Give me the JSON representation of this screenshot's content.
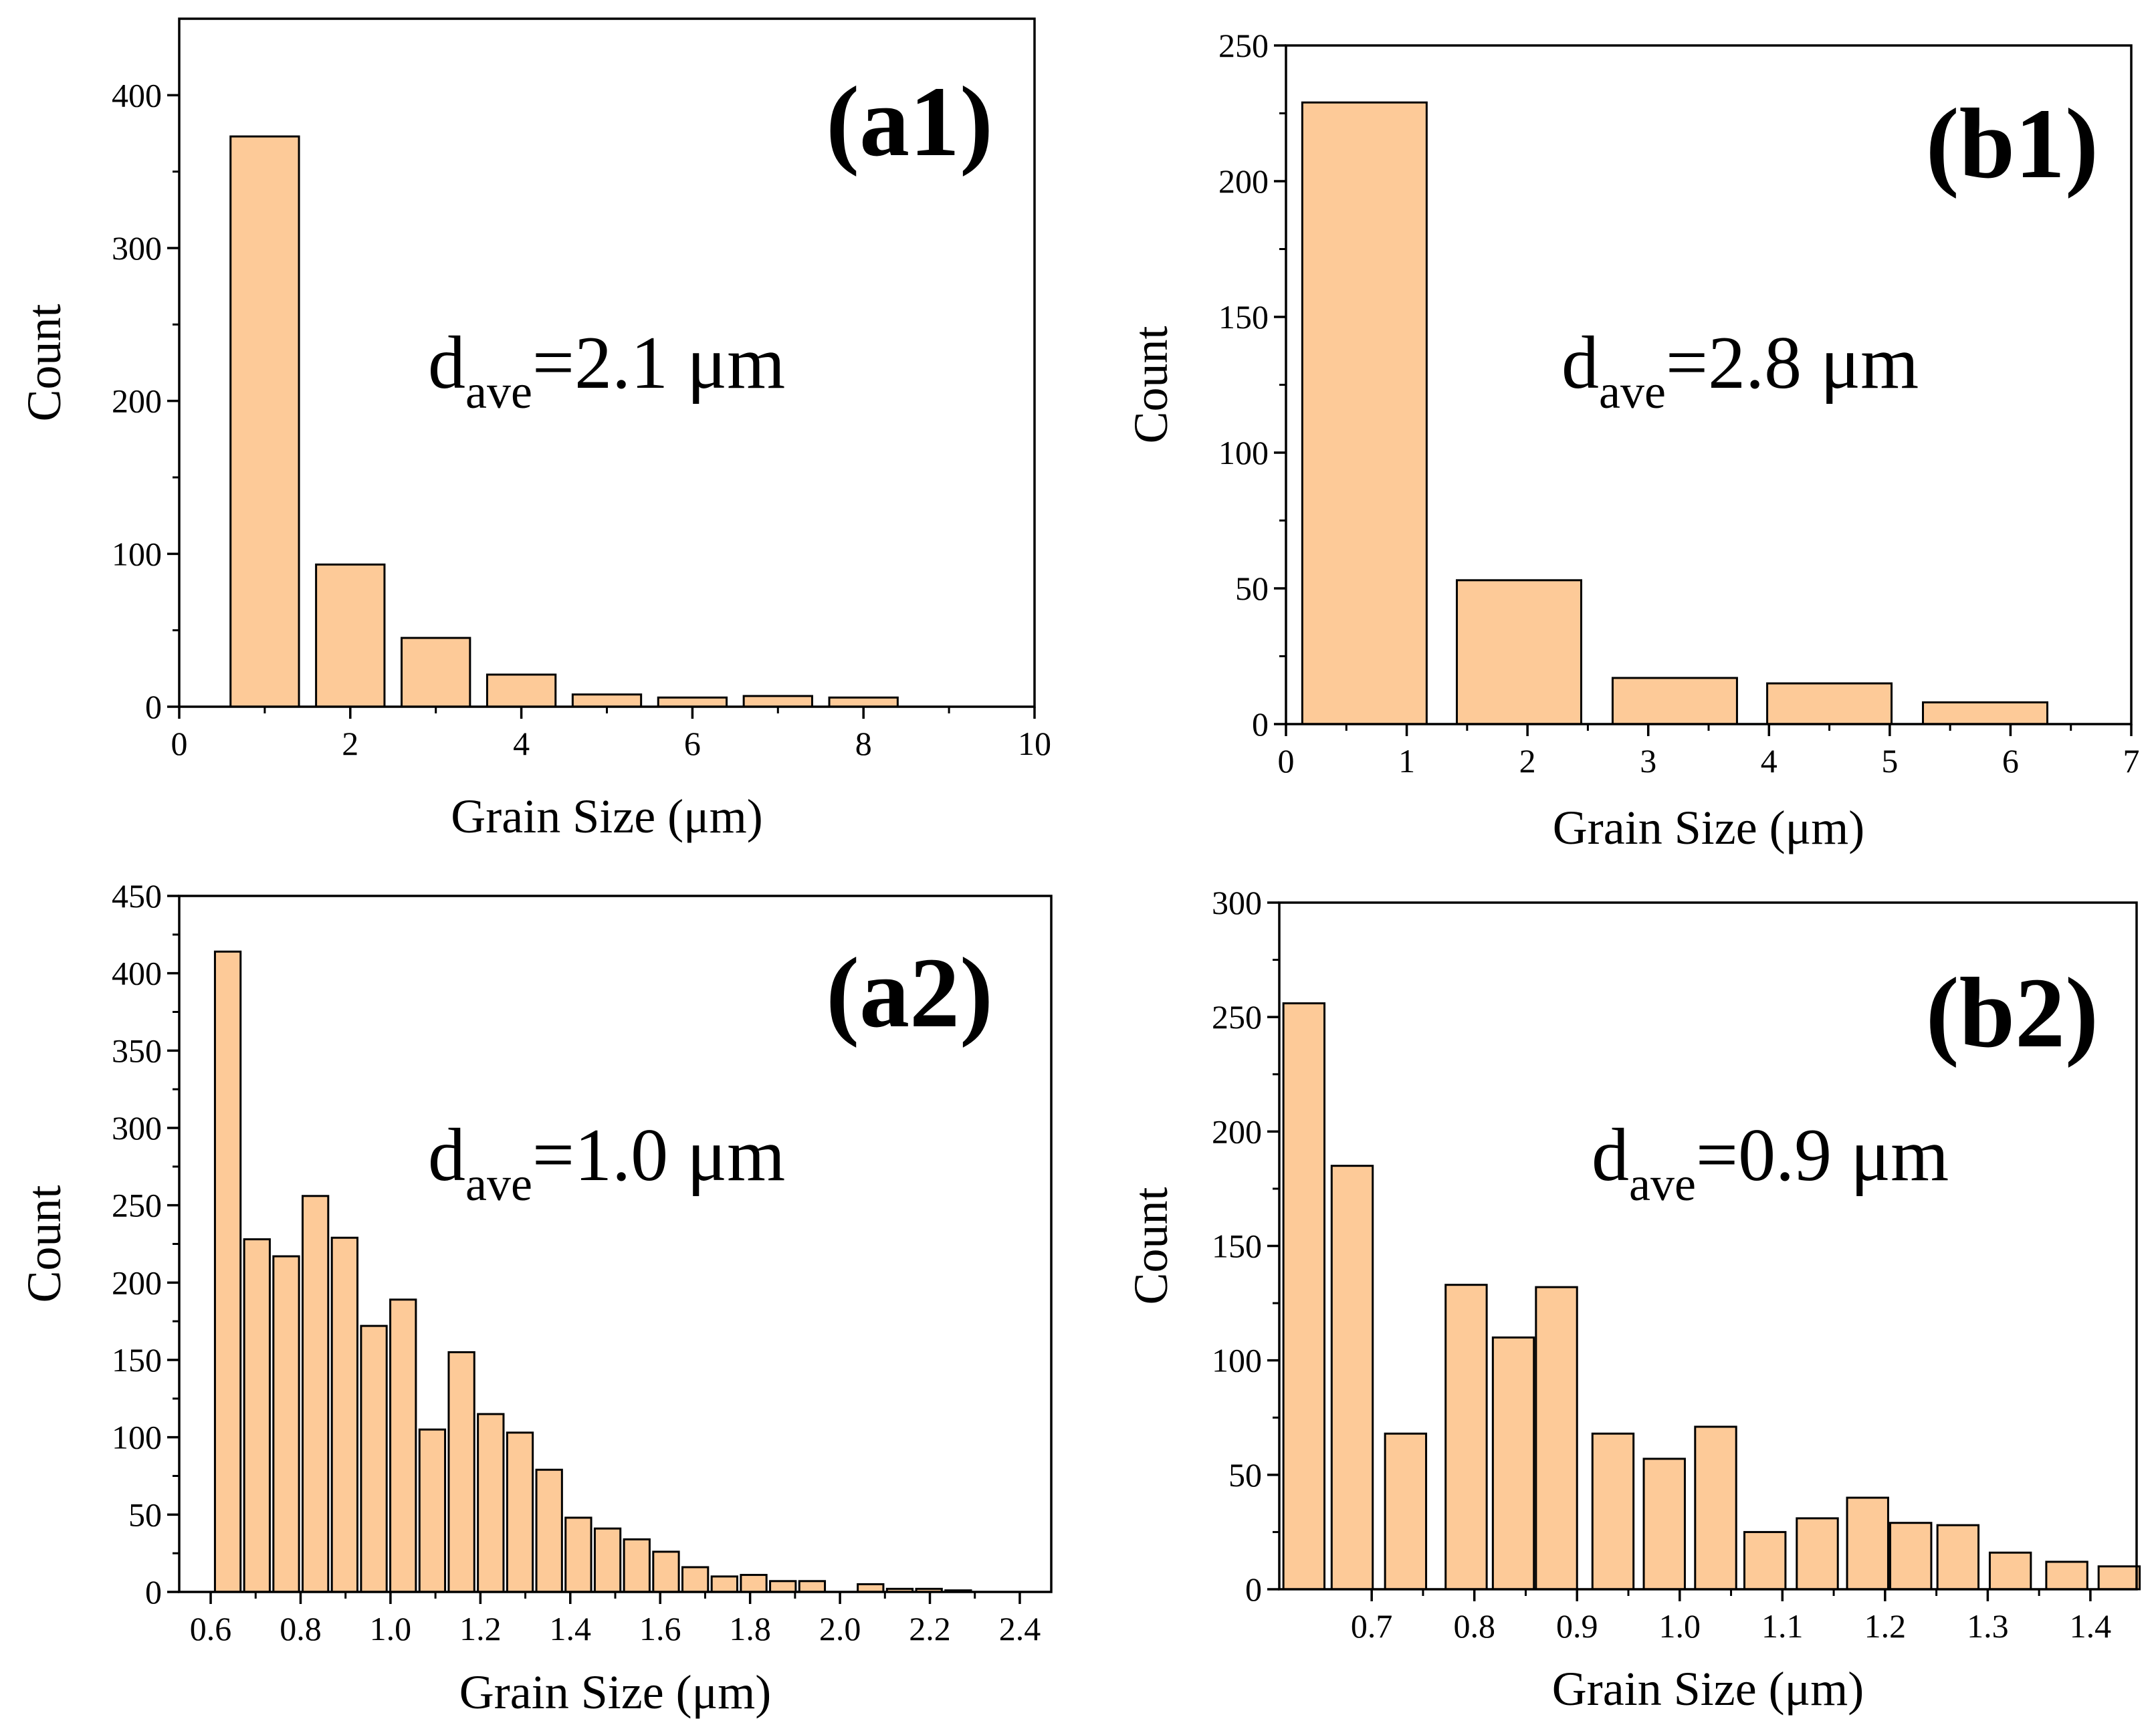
{
  "figure": {
    "background": "#ffffff",
    "bar_fill": "#fdca98",
    "bar_stroke": "#000000",
    "axis_color": "#000000"
  },
  "chart_data": [
    {
      "id": "a1",
      "type": "bar",
      "panel_label": "(a1)",
      "annotation": {
        "symbol": "d",
        "subscript": "ave",
        "rest": "=2.1 μm"
      },
      "xlabel": "Grain Size (μm)",
      "ylabel": "Count",
      "xlim": [
        0,
        10
      ],
      "ylim": [
        0,
        450
      ],
      "xticks": [
        0,
        2,
        4,
        6,
        8,
        10
      ],
      "xtick_labels": [
        "0",
        "2",
        "4",
        "6",
        "8",
        "10"
      ],
      "yticks": [
        0,
        100,
        200,
        300,
        400
      ],
      "ytick_labels": [
        "0",
        "100",
        "200",
        "300",
        "400"
      ],
      "bar_width": 0.8,
      "x": [
        1,
        2,
        3,
        4,
        5,
        6,
        7,
        8
      ],
      "values": [
        373,
        93,
        45,
        21,
        8,
        6,
        7,
        6
      ]
    },
    {
      "id": "b1",
      "type": "bar",
      "panel_label": "(b1)",
      "annotation": {
        "symbol": "d",
        "subscript": "ave",
        "rest": "=2.8 μm"
      },
      "xlabel": "Grain Size (μm)",
      "ylabel": "Count",
      "xlim": [
        0,
        7
      ],
      "ylim": [
        0,
        250
      ],
      "xticks": [
        0,
        1,
        2,
        3,
        4,
        5,
        6,
        7
      ],
      "xtick_labels": [
        "0",
        "1",
        "2",
        "3",
        "4",
        "5",
        "6",
        "7"
      ],
      "yticks": [
        0,
        50,
        100,
        150,
        200,
        250
      ],
      "ytick_labels": [
        "0",
        "50",
        "100",
        "150",
        "200",
        "250"
      ],
      "bar_width": 1.03,
      "x": [
        0.65,
        1.93,
        3.22,
        4.5,
        5.79
      ],
      "values": [
        229,
        53,
        17,
        15,
        8
      ]
    },
    {
      "id": "a2",
      "type": "bar",
      "panel_label": "(a2)",
      "annotation": {
        "symbol": "d",
        "subscript": "ave",
        "rest": "=1.0 μm"
      },
      "xlabel": "Grain Size (μm)",
      "ylabel": "Count",
      "xlim": [
        0.53,
        2.47
      ],
      "ylim": [
        0,
        450
      ],
      "xticks": [
        0.6,
        0.8,
        1.0,
        1.2,
        1.4,
        1.6,
        1.8,
        2.0,
        2.2,
        2.4
      ],
      "xtick_labels": [
        "0.6",
        "0.8",
        "1.0",
        "1.2",
        "1.4",
        "1.6",
        "1.8",
        "2.0",
        "2.2",
        "2.4"
      ],
      "yticks": [
        0,
        50,
        100,
        150,
        200,
        250,
        300,
        350,
        400,
        450
      ],
      "ytick_labels": [
        "0",
        "50",
        "100",
        "150",
        "200",
        "250",
        "300",
        "350",
        "400",
        "450"
      ],
      "bar_width": 0.057,
      "x": [
        0.638,
        0.703,
        0.768,
        0.833,
        0.898,
        0.963,
        1.028,
        1.093,
        1.158,
        1.223,
        1.288,
        1.353,
        1.418,
        1.483,
        1.548,
        1.613,
        1.678,
        1.743,
        1.808,
        1.873,
        1.938,
        2.003,
        2.068,
        2.133,
        2.198,
        2.263
      ],
      "values": [
        414,
        228,
        217,
        256,
        229,
        172,
        189,
        105,
        155,
        115,
        103,
        79,
        48,
        41,
        34,
        26,
        16,
        10,
        11,
        7,
        7,
        0,
        5,
        2,
        2,
        1
      ]
    },
    {
      "id": "b2",
      "type": "bar",
      "panel_label": "(b2)",
      "annotation": {
        "symbol": "d",
        "subscript": "ave",
        "rest": "=0.9 μm"
      },
      "xlabel": "Grain Size (μm)",
      "ylabel": "Count",
      "xlim": [
        0.61,
        1.445
      ],
      "ylim": [
        0,
        300
      ],
      "xticks": [
        0.7,
        0.8,
        0.9,
        1.0,
        1.1,
        1.2,
        1.3,
        1.4
      ],
      "xtick_labels": [
        "0.7",
        "0.8",
        "0.9",
        "1.0",
        "1.1",
        "1.2",
        "1.3",
        "1.4"
      ],
      "yticks": [
        0,
        50,
        100,
        150,
        200,
        250,
        300
      ],
      "ytick_labels": [
        "0",
        "50",
        "100",
        "150",
        "200",
        "250",
        "300"
      ],
      "bar_width": 0.04,
      "x": [
        0.634,
        0.681,
        0.733,
        0.792,
        0.838,
        0.88,
        0.935,
        0.985,
        1.035,
        1.083,
        1.134,
        1.183,
        1.225,
        1.271,
        1.322,
        1.377,
        1.428
      ],
      "values": [
        256,
        185,
        68,
        133,
        110,
        132,
        68,
        57,
        71,
        25,
        31,
        40,
        29,
        28,
        16,
        12,
        10
      ]
    }
  ]
}
